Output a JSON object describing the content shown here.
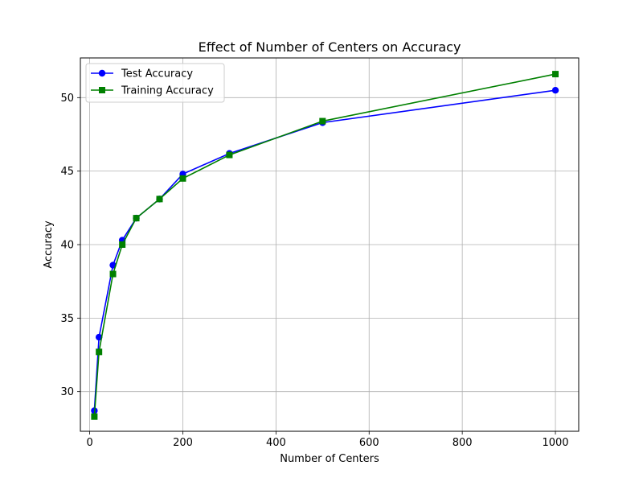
{
  "chart_data": {
    "type": "line",
    "title": "Effect of Number of Centers on Accuracy",
    "xlabel": "Number of Centers",
    "ylabel": "Accuracy",
    "xlim": [
      -20,
      1050
    ],
    "ylim": [
      27.3,
      52.7
    ],
    "xticks": [
      0,
      200,
      400,
      600,
      800,
      1000
    ],
    "yticks": [
      30,
      35,
      40,
      45,
      50
    ],
    "grid": true,
    "legend_position": "upper-left",
    "x": [
      10,
      20,
      50,
      70,
      100,
      150,
      200,
      300,
      500,
      1000
    ],
    "series": [
      {
        "name": "Test Accuracy",
        "color": "#0000ff",
        "marker": "circle",
        "values": [
          28.7,
          33.7,
          38.6,
          40.3,
          41.8,
          43.1,
          44.8,
          46.2,
          48.3,
          50.5
        ]
      },
      {
        "name": "Training Accuracy",
        "color": "#008000",
        "marker": "square",
        "values": [
          28.3,
          32.7,
          38.0,
          40.0,
          41.8,
          43.1,
          44.5,
          46.1,
          48.4,
          51.6
        ]
      }
    ]
  }
}
